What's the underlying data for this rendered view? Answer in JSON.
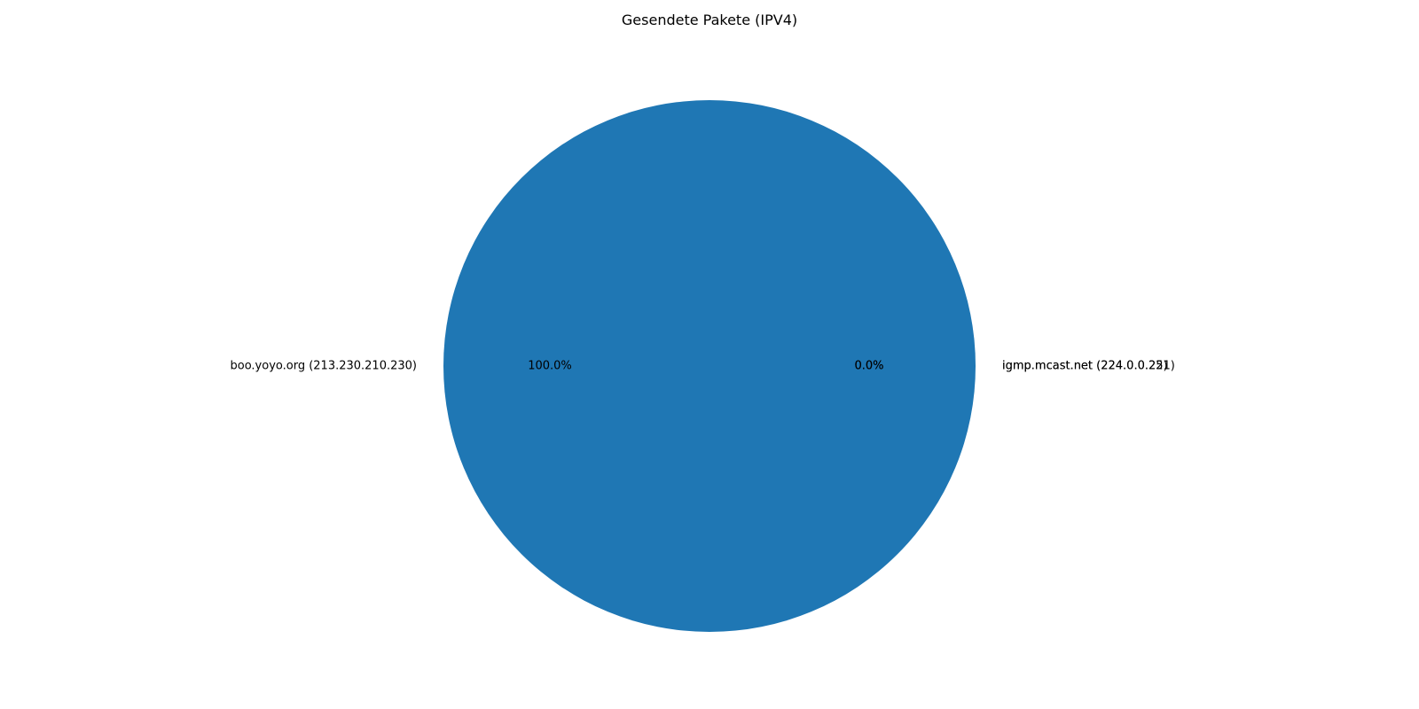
{
  "chart_data": {
    "type": "pie",
    "title": "Gesendete Pakete (IPV4)",
    "start_angle_deg": 0,
    "direction": "counterclockwise",
    "autopct_format": "%.1f%%",
    "slices": [
      {
        "label": "boo.yoyo.org (213.230.210.230)",
        "value": 100.0,
        "pct_label": "100.0%",
        "color": "#1f77b4"
      },
      {
        "label": "igmp.mcast.net (224.0.0.22)",
        "value": 0.0,
        "pct_label": "0.0%",
        "color": "#ff7f0e"
      },
      {
        "label": "igmp.mcast.net (224.0.0.251)",
        "value": 0.0,
        "pct_label": "0.0%",
        "color": "#2ca02c"
      }
    ]
  }
}
